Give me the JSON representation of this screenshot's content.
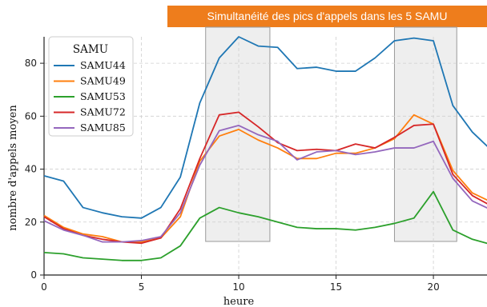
{
  "title": "Simultanéité des pics d'appels dans les 5 SAMU",
  "colors": {
    "banner": "#ee7d1c",
    "shade": "#d9d9d9",
    "grid": "#cfcfcf"
  },
  "chart_data": {
    "type": "line",
    "title": "Simultanéité des pics d'appels dans les 5 SAMU",
    "xlabel": "heure",
    "ylabel": "nombre d'appels moyen",
    "xlim": [
      0,
      23
    ],
    "ylim": [
      0,
      90
    ],
    "xticks": [
      0,
      5,
      10,
      15,
      20
    ],
    "yticks": [
      0,
      20,
      40,
      60,
      80
    ],
    "grid": true,
    "legend": {
      "title": "SAMU",
      "position": "top-left"
    },
    "x": [
      0,
      1,
      2,
      3,
      4,
      5,
      6,
      7,
      8,
      9,
      10,
      11,
      12,
      13,
      14,
      15,
      16,
      17,
      18,
      19,
      20,
      21,
      22,
      23
    ],
    "shaded_regions": [
      [
        8.3,
        11.6
      ],
      [
        18.0,
        21.2
      ]
    ],
    "series": [
      {
        "name": "SAMU44",
        "color": "#1f77b4",
        "values": [
          37.5,
          35.5,
          25.5,
          23.5,
          22,
          21.5,
          25.5,
          37,
          65,
          82,
          90,
          86.5,
          86,
          78,
          78.5,
          77,
          77,
          82,
          88.5,
          89.5,
          88.5,
          64,
          54,
          47
        ]
      },
      {
        "name": "SAMU49",
        "color": "#ff7f0e",
        "values": [
          22.5,
          18,
          15.5,
          14.5,
          12.5,
          12.5,
          14,
          22,
          43,
          52.5,
          55,
          51,
          48,
          44,
          44,
          46,
          46,
          48,
          51.5,
          60.5,
          57,
          39.5,
          31,
          27.5
        ]
      },
      {
        "name": "SAMU53",
        "color": "#2ca02c",
        "values": [
          8.5,
          8,
          6.5,
          6,
          5.5,
          5.5,
          6.5,
          11,
          21.5,
          25.5,
          23.5,
          22,
          20,
          18,
          17.5,
          17.5,
          17,
          18,
          19.5,
          21.5,
          31.5,
          17,
          13.5,
          11.5
        ]
      },
      {
        "name": "SAMU72",
        "color": "#d62728",
        "values": [
          22,
          17.5,
          15,
          13.5,
          12.5,
          12,
          14,
          25,
          44,
          60.5,
          61.5,
          56,
          50,
          47,
          47.5,
          47,
          49.5,
          48,
          52,
          56.5,
          57,
          38,
          30,
          26
        ]
      },
      {
        "name": "SAMU85",
        "color": "#9467bd",
        "values": [
          20.5,
          17,
          15,
          12.5,
          12.5,
          13,
          14.5,
          23.5,
          41.5,
          54.5,
          56.5,
          53,
          50.5,
          43.5,
          46.5,
          47,
          45.5,
          46.5,
          48,
          48,
          50.5,
          36.5,
          28,
          24.5
        ]
      }
    ]
  }
}
